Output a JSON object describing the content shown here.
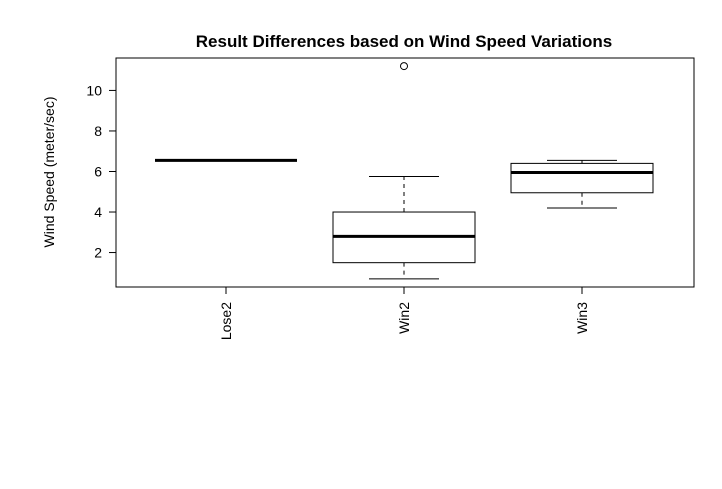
{
  "chart_data": {
    "type": "box",
    "title": "Result Differences based on Wind Speed Variations",
    "xlabel": "",
    "ylabel": "Wind Speed (meter/sec)",
    "ylim": [
      0.3,
      11.6
    ],
    "yticks": [
      2,
      4,
      6,
      8,
      10
    ],
    "grid": false,
    "categories": [
      "Lose2",
      "Win2",
      "Win3"
    ],
    "boxes": [
      {
        "category": "Lose2",
        "min": 6.55,
        "q1": 6.55,
        "median": 6.55,
        "q3": 6.55,
        "max": 6.55,
        "outliers": []
      },
      {
        "category": "Win2",
        "min": 0.7,
        "q1": 1.5,
        "median": 2.8,
        "q3": 4.0,
        "max": 5.75,
        "outliers": [
          11.2
        ]
      },
      {
        "category": "Win3",
        "min": 4.2,
        "q1": 4.95,
        "median": 5.95,
        "q3": 6.4,
        "max": 6.55,
        "outliers": []
      }
    ],
    "colors": {
      "box_fill": "#ffffff",
      "stroke": "#000000"
    }
  }
}
